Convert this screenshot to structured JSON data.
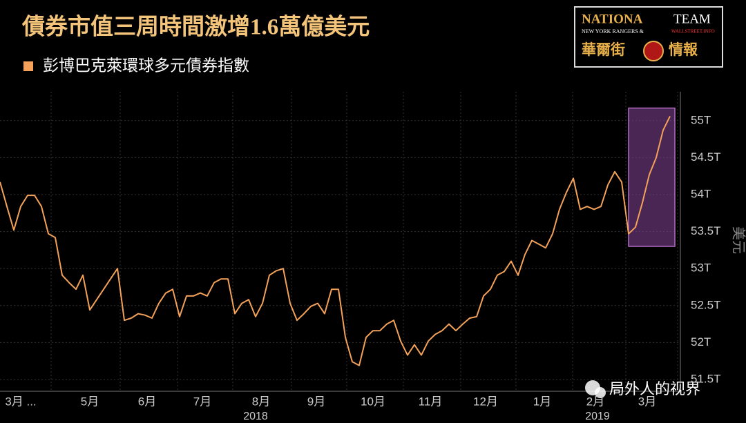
{
  "chart_data": {
    "type": "line",
    "title": "債券市值三周時間激增1.6萬億美元",
    "y_label": "美元",
    "series": [
      {
        "name": "彭博巴克萊環球多元債券指數",
        "color": "#f4a259",
        "values": [
          54.17,
          53.84,
          53.52,
          53.84,
          53.99,
          53.99,
          53.84,
          53.47,
          53.42,
          52.91,
          52.81,
          52.72,
          52.91,
          52.44,
          52.58,
          52.72,
          52.86,
          53.0,
          52.3,
          52.33,
          52.39,
          52.37,
          52.33,
          52.53,
          52.67,
          52.72,
          52.35,
          52.63,
          52.63,
          52.67,
          52.63,
          52.81,
          52.86,
          52.86,
          52.39,
          52.53,
          52.58,
          52.35,
          52.53,
          52.91,
          52.97,
          53.0,
          52.53,
          52.3,
          52.39,
          52.49,
          52.53,
          52.39,
          52.72,
          52.72,
          52.07,
          51.74,
          51.69,
          52.07,
          52.16,
          52.16,
          52.25,
          52.3,
          52.02,
          51.83,
          51.97,
          51.83,
          52.02,
          52.11,
          52.16,
          52.25,
          52.16,
          52.25,
          52.33,
          52.35,
          52.63,
          52.72,
          52.91,
          52.96,
          53.1,
          52.91,
          53.19,
          53.38,
          53.33,
          53.28,
          53.47,
          53.8,
          54.03,
          54.22,
          53.8,
          53.84,
          53.8,
          53.84,
          54.13,
          54.31,
          54.17,
          53.47,
          53.56,
          53.89,
          54.27,
          54.5,
          54.87,
          55.06
        ]
      }
    ],
    "xlim": [
      0,
      98.5
    ],
    "xticks": [
      {
        "value": 3,
        "label": "3月 ..."
      },
      {
        "value": 13,
        "label": "5月"
      },
      {
        "value": 21.3,
        "label": "6月"
      },
      {
        "value": 29.3,
        "label": "7月"
      },
      {
        "value": 37.8,
        "label": "8月"
      },
      {
        "value": 45.8,
        "label": "9月"
      },
      {
        "value": 54,
        "label": "10月"
      },
      {
        "value": 62.3,
        "label": "11月"
      },
      {
        "value": 70.3,
        "label": "12月"
      },
      {
        "value": 78.5,
        "label": "1月"
      },
      {
        "value": 86.2,
        "label": "2月"
      },
      {
        "value": 93.7,
        "label": "3月"
      }
    ],
    "x_group_labels": [
      {
        "value": 37,
        "label": "2018"
      },
      {
        "value": 86.5,
        "label": "2019"
      }
    ],
    "ylim": [
      51.36,
      55.39
    ],
    "yticks": [
      {
        "value": 51.5,
        "label": "51.5T"
      },
      {
        "value": 52,
        "label": "52T"
      },
      {
        "value": 52.5,
        "label": "52.5T"
      },
      {
        "value": 53,
        "label": "53T"
      },
      {
        "value": 53.5,
        "label": "53.5T"
      },
      {
        "value": 54,
        "label": "54T"
      },
      {
        "value": 54.5,
        "label": "54.5T"
      },
      {
        "value": 55,
        "label": "55T"
      }
    ],
    "grid": true,
    "highlight": {
      "x": [
        91,
        97.7
      ],
      "y": [
        53.3,
        55.17
      ],
      "color": "#7b3f8c"
    }
  },
  "logo": {
    "brand_a": "NATIONA",
    "brand_b": "TEAM",
    "subtitle": "NEW YORK RANGERS &",
    "site": "WALLSTREET.INFO",
    "name_a": "華爾街",
    "name_b": "情報"
  },
  "watermark": "局外人的视界"
}
